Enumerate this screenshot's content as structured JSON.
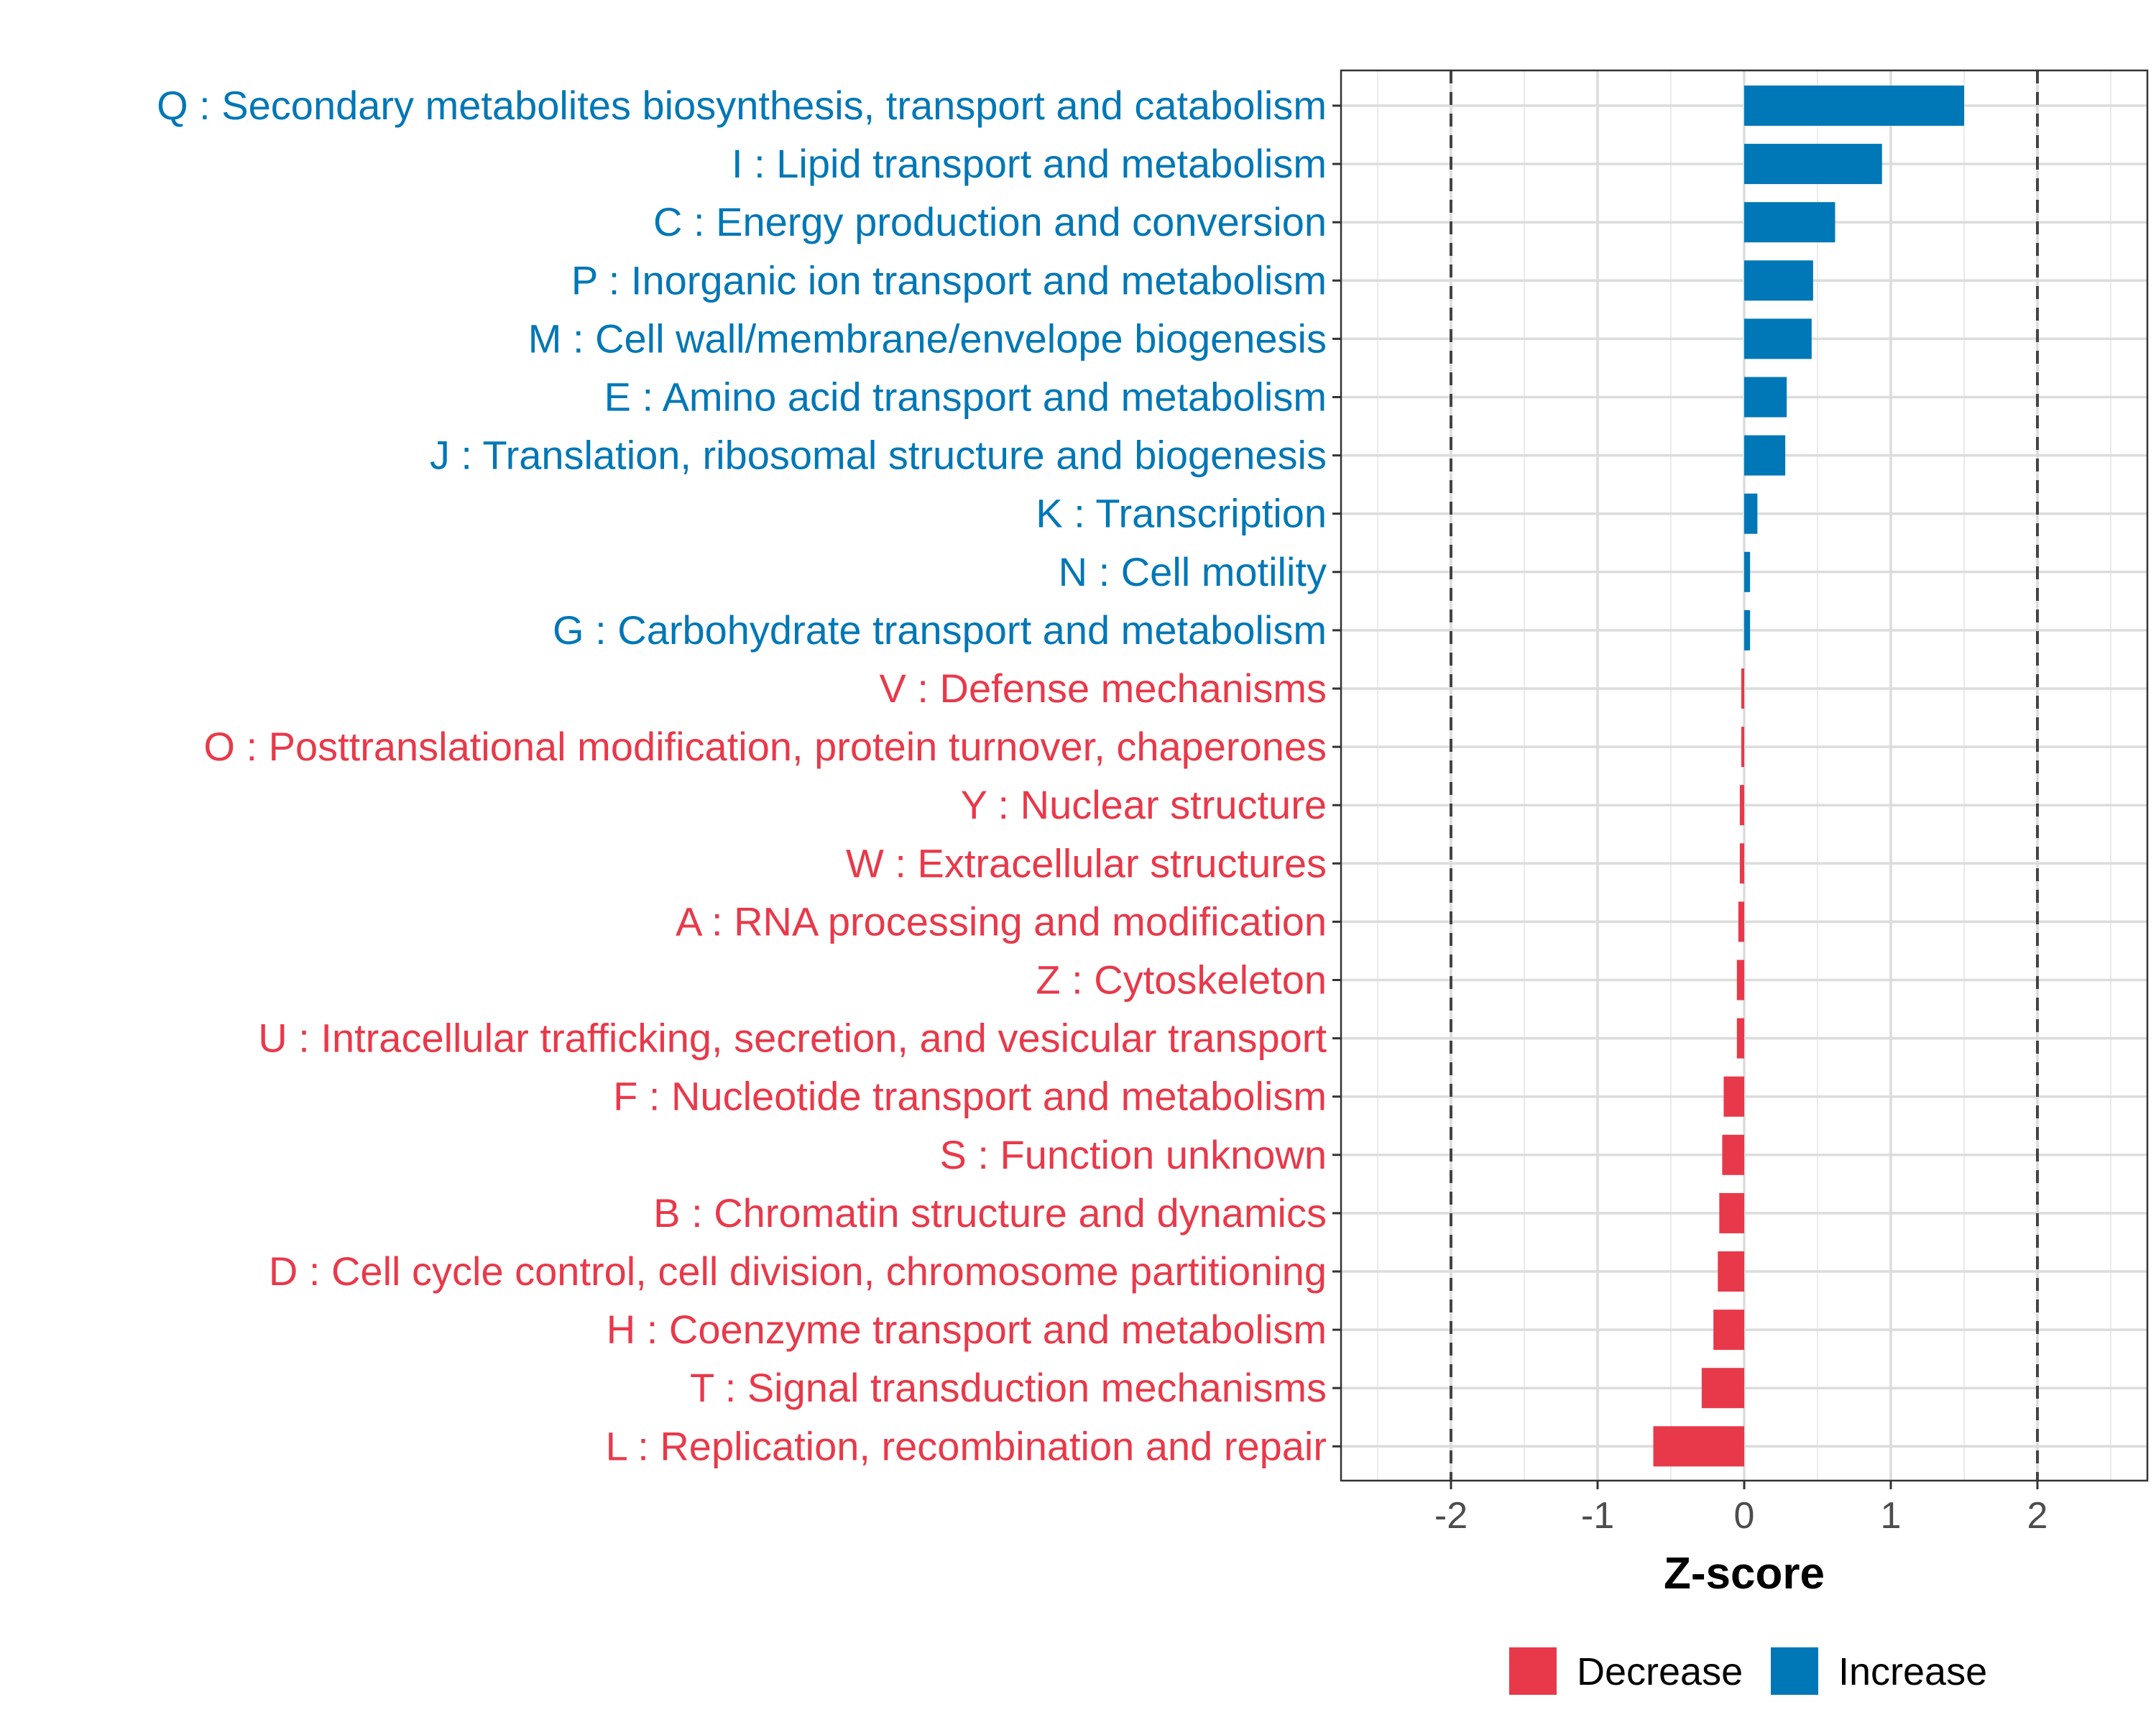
{
  "chart_data": {
    "type": "bar",
    "orientation": "horizontal",
    "title": "",
    "xlabel": "Z-score",
    "ylabel": "",
    "xlim": [
      -2.75,
      2.75
    ],
    "xticks": [
      -2,
      -1,
      0,
      1,
      2
    ],
    "xtick_labels": [
      "-2",
      "-1",
      "0",
      "1",
      "2"
    ],
    "reference_lines": [
      -2,
      2
    ],
    "grid": true,
    "categories": [
      "Q : Secondary metabolites biosynthesis, transport and catabolism",
      "I : Lipid transport and metabolism",
      "C : Energy production and conversion",
      "P : Inorganic ion transport and metabolism",
      "M : Cell wall/membrane/envelope biogenesis",
      "E : Amino acid transport and metabolism",
      "J : Translation, ribosomal structure and biogenesis",
      "K : Transcription",
      "N : Cell motility",
      "G : Carbohydrate transport and metabolism",
      "V : Defense mechanisms",
      "O : Posttranslational modification, protein turnover, chaperones",
      "Y : Nuclear structure",
      "W : Extracellular structures",
      "A : RNA processing and modification",
      "Z : Cytoskeleton",
      "U : Intracellular trafficking, secretion, and vesicular transport",
      "F : Nucleotide transport and metabolism",
      "S : Function unknown",
      "B : Chromatin structure and dynamics",
      "D : Cell cycle control, cell division, chromosome partitioning",
      "H : Coenzyme transport and metabolism",
      "T : Signal transduction mechanisms",
      "L : Replication, recombination and repair"
    ],
    "values": [
      1.5,
      0.94,
      0.62,
      0.47,
      0.46,
      0.29,
      0.28,
      0.09,
      0.04,
      0.04,
      -0.02,
      -0.02,
      -0.03,
      -0.03,
      -0.04,
      -0.05,
      -0.05,
      -0.14,
      -0.15,
      -0.17,
      -0.18,
      -0.21,
      -0.29,
      -0.62
    ],
    "legend": [
      {
        "label": "Decrease",
        "color": "#e8394a"
      },
      {
        "label": "Increase",
        "color": "#0077b6"
      }
    ],
    "legend_position": "bottom-right"
  }
}
